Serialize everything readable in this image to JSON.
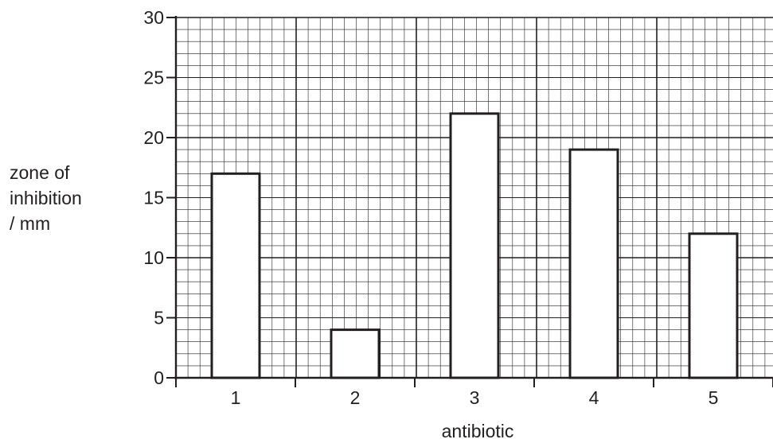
{
  "chart_data": {
    "type": "bar",
    "categories": [
      "1",
      "2",
      "3",
      "4",
      "5"
    ],
    "values": [
      17,
      4,
      22,
      19,
      12
    ],
    "xlabel": "antibiotic",
    "ylabel_lines": [
      "zone of",
      "inhibition",
      "/ mm"
    ],
    "ylim": [
      0,
      30
    ],
    "y_ticks": [
      0,
      5,
      10,
      15,
      20,
      25,
      30
    ],
    "y_major_step": 10,
    "y_minor_step": 1,
    "grid": true,
    "colors": {
      "bar_fill": "#ffffff",
      "bar_stroke": "#231f20",
      "grid_major": "#231f20",
      "grid_minor": "#231f20",
      "axis": "#231f20"
    }
  }
}
